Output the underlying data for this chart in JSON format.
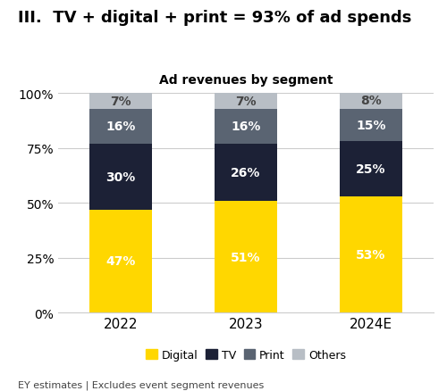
{
  "title": "III.  TV + digital + print = 93% of ad spends",
  "subtitle": "Ad revenues by segment",
  "footnote": "EY estimates | Excludes event segment revenues",
  "categories": [
    "2022",
    "2023",
    "2024E"
  ],
  "segments": [
    "Digital",
    "TV",
    "Print",
    "Others"
  ],
  "values": {
    "Digital": [
      47,
      51,
      53
    ],
    "TV": [
      30,
      26,
      25
    ],
    "Print": [
      16,
      16,
      15
    ],
    "Others": [
      7,
      7,
      8
    ]
  },
  "colors": {
    "Digital": "#FFD700",
    "TV": "#1C2136",
    "Print": "#5A6472",
    "Others": "#B8BEC5"
  },
  "label_colors": {
    "Digital": "#FFFFFF",
    "TV": "#FFFFFF",
    "Print": "#FFFFFF",
    "Others": "#444444"
  },
  "ylim": [
    0,
    100
  ],
  "yticks": [
    0,
    25,
    50,
    75,
    100
  ],
  "ytick_labels": [
    "0%",
    "25%",
    "50%",
    "75%",
    "100%"
  ],
  "bar_width": 0.5,
  "background_color": "#FFFFFF",
  "title_fontsize": 13,
  "subtitle_fontsize": 10,
  "footnote_fontsize": 8,
  "label_fontsize": 10,
  "tick_fontsize": 10,
  "legend_fontsize": 9
}
